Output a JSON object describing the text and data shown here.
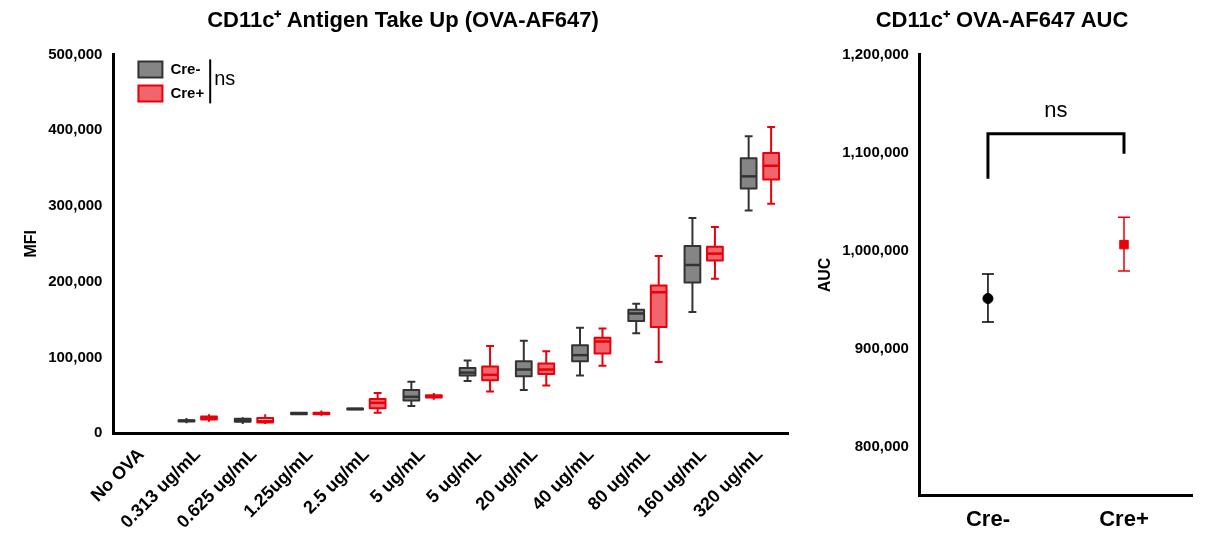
{
  "chart_data": [
    {
      "type": "box",
      "title": "CD11c⁺ Antigen Take Up (OVA-AF647)",
      "ylabel": "MFI",
      "categories": [
        "No OVA",
        "0.313 ug/mL",
        "0.625 ug/mL",
        "1.25ug/mL",
        "2.5 ug/mL",
        "5 ug/mL",
        "5 ug/mL",
        "20 ug/mL",
        "40 ug/mL",
        "80 ug/mL",
        "160 ug/mL",
        "320 ug/mL"
      ],
      "ylim": [
        0,
        500000
      ],
      "yticks": [
        0,
        {
          "value": 100000,
          "label": "100,000"
        },
        {
          "value": 200000,
          "label": "200,000"
        },
        {
          "value": 300000,
          "label": "300,000"
        },
        {
          "value": 400000,
          "label": "400,000"
        },
        {
          "value": 500000,
          "label": "500,000"
        }
      ],
      "legend": "top left",
      "annotations": [
        "ns"
      ],
      "series": [
        {
          "name": "Cre-",
          "color": "#333333",
          "boxes": [
            null,
            {
              "low": 13000,
              "q1": 15500,
              "median": 16500,
              "q3": 17000,
              "high": 20000
            },
            {
              "low": 12000,
              "q1": 15000,
              "median": 17000,
              "q3": 19000,
              "high": 21000
            },
            {
              "low": 24000,
              "q1": 25000,
              "median": 26000,
              "q3": 27000,
              "high": 28000
            },
            {
              "low": 31000,
              "q1": 31500,
              "median": 32000,
              "q3": 32500,
              "high": 33000
            },
            {
              "low": 36000,
              "q1": 43000,
              "median": 48000,
              "q3": 57000,
              "high": 68000
            },
            {
              "low": 69000,
              "q1": 76000,
              "median": 80000,
              "q3": 86000,
              "high": 96000
            },
            {
              "low": 57000,
              "q1": 75000,
              "median": 84000,
              "q3": 95000,
              "high": 122000
            },
            {
              "low": 76000,
              "q1": 95000,
              "median": 103000,
              "q3": 116000,
              "high": 139000
            },
            {
              "low": 132000,
              "q1": 148000,
              "median": 158000,
              "q3": 163000,
              "high": 171000
            },
            {
              "low": 160000,
              "q1": 199000,
              "median": 222000,
              "q3": 247000,
              "high": 284000
            },
            {
              "low": 294000,
              "q1": 323000,
              "median": 339000,
              "q3": 363000,
              "high": 392000
            }
          ]
        },
        {
          "name": "Cre+",
          "color": "#e8000b",
          "boxes": [
            null,
            {
              "low": 15000,
              "q1": 18000,
              "median": 20000,
              "q3": 22000,
              "high": 25000
            },
            {
              "low": 12000,
              "q1": 14000,
              "median": 16000,
              "q3": 20000,
              "high": 25000
            },
            {
              "low": 23000,
              "q1": 25000,
              "median": 26000,
              "q3": 27000,
              "high": 30000
            },
            {
              "low": 27000,
              "q1": 33000,
              "median": 40000,
              "q3": 45000,
              "high": 53000
            },
            {
              "low": 44000,
              "q1": 47000,
              "median": 48000,
              "q3": 50000,
              "high": 53000
            },
            {
              "low": 55000,
              "q1": 70000,
              "median": 77000,
              "q3": 88000,
              "high": 115000
            },
            {
              "low": 63000,
              "q1": 78000,
              "median": 84000,
              "q3": 92000,
              "high": 108000
            },
            {
              "low": 89000,
              "q1": 105000,
              "median": 121000,
              "q3": 126000,
              "high": 138000
            },
            {
              "low": 94000,
              "q1": 140000,
              "median": 186000,
              "q3": 195000,
              "high": 234000
            },
            {
              "low": 204000,
              "q1": 228000,
              "median": 237000,
              "q3": 246000,
              "high": 272000
            },
            {
              "low": 303000,
              "q1": 335000,
              "median": 353000,
              "q3": 370000,
              "high": 404000
            }
          ]
        }
      ]
    },
    {
      "type": "scatter",
      "title": "CD11c⁺ OVA-AF647 AUC",
      "ylabel": "AUC",
      "categories": [
        "Cre-",
        "Cre+"
      ],
      "ylim": [
        750000,
        1200000
      ],
      "yticks": [
        {
          "value": 800000,
          "label": "800,000"
        },
        {
          "value": 900000,
          "label": "900,000"
        },
        {
          "value": 1000000,
          "label": "1,000,000"
        },
        {
          "value": 1100000,
          "label": "1,100,000"
        },
        {
          "value": 1200000,
          "label": "1,200,000"
        }
      ],
      "annotations": [
        "ns"
      ],
      "series": [
        {
          "color": "#000000",
          "marker": "circle",
          "values": [
            951000,
            null
          ],
          "errors": [
            [
              927000,
              976000
            ],
            null
          ]
        },
        {
          "color": "#e8000b",
          "marker": "square",
          "values": [
            null,
            1006000
          ],
          "errors": [
            null,
            [
              979000,
              1034000
            ]
          ]
        }
      ]
    }
  ]
}
